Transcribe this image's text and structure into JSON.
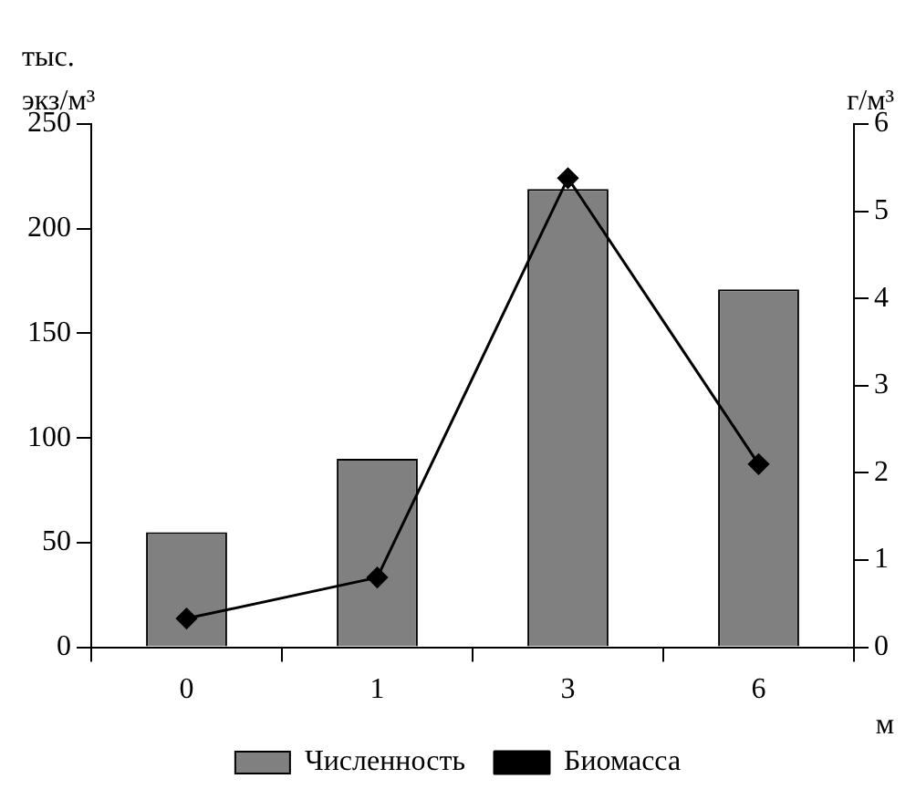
{
  "chart_data": {
    "type": "bar",
    "ylabel": "тыс. экз/м³",
    "y2label": "г/м³",
    "xlabel": "м",
    "categories": [
      "0",
      "1",
      "3",
      "6"
    ],
    "series": [
      {
        "name": "Численность",
        "color": "#808080",
        "values": [
          55,
          90,
          219,
          171
        ]
      },
      {
        "name": "Биомасса",
        "type": "line",
        "axis": "y2",
        "color": "#000000",
        "marker": "diamond",
        "values": [
          0.33,
          0.8,
          5.38,
          2.1
        ]
      }
    ],
    "ylim": [
      0,
      250
    ],
    "yticks": [
      0,
      50,
      100,
      150,
      200,
      250
    ],
    "y2lim": [
      0,
      6
    ],
    "y2ticks": [
      0,
      1,
      2,
      3,
      4,
      5,
      6
    ],
    "grid": false,
    "legend": "bottom"
  }
}
